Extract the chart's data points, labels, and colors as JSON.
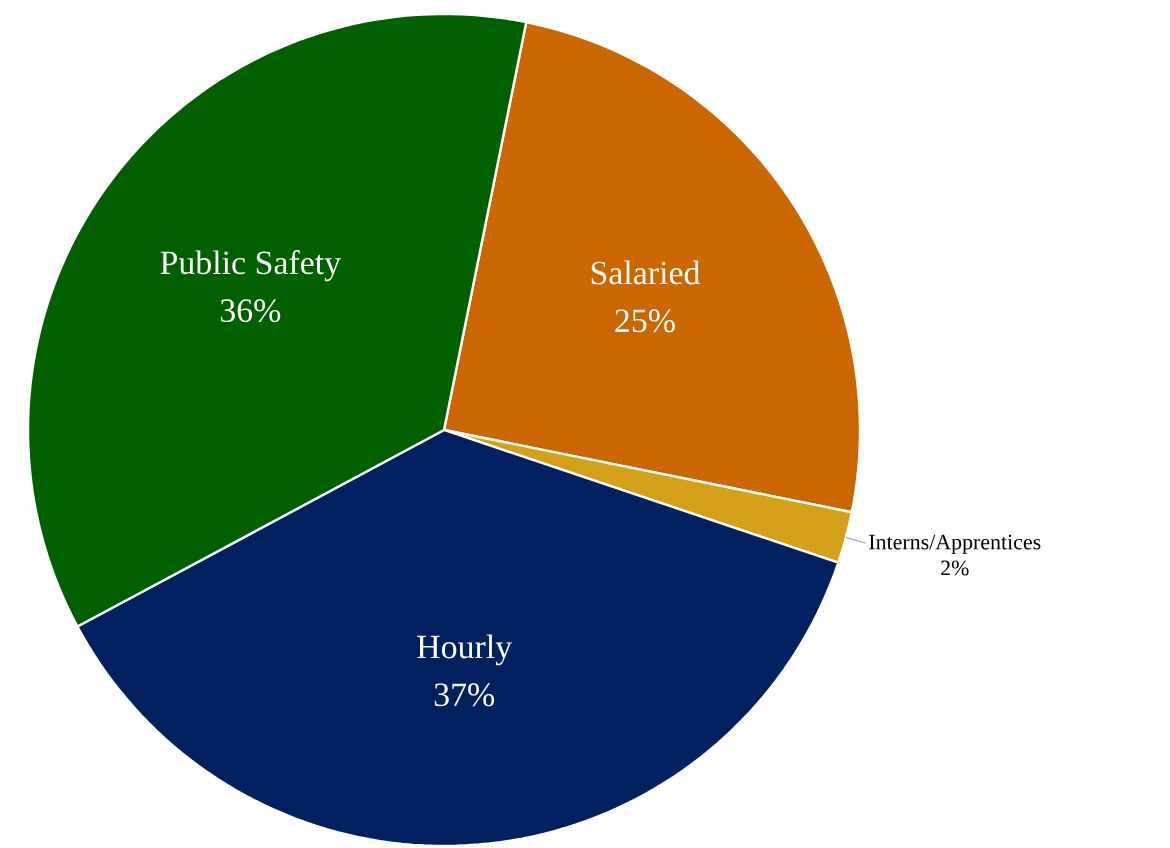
{
  "chart_data": {
    "type": "pie",
    "categories": [
      "Salaried",
      "Interns/Apprentices",
      "Hourly",
      "Public Safety"
    ],
    "values": [
      25,
      2,
      37,
      36
    ],
    "value_labels": [
      "25%",
      "2%",
      "37%",
      "36%"
    ],
    "colors": [
      "#cc6600",
      "#d4a017",
      "#002060",
      "#006000"
    ]
  }
}
